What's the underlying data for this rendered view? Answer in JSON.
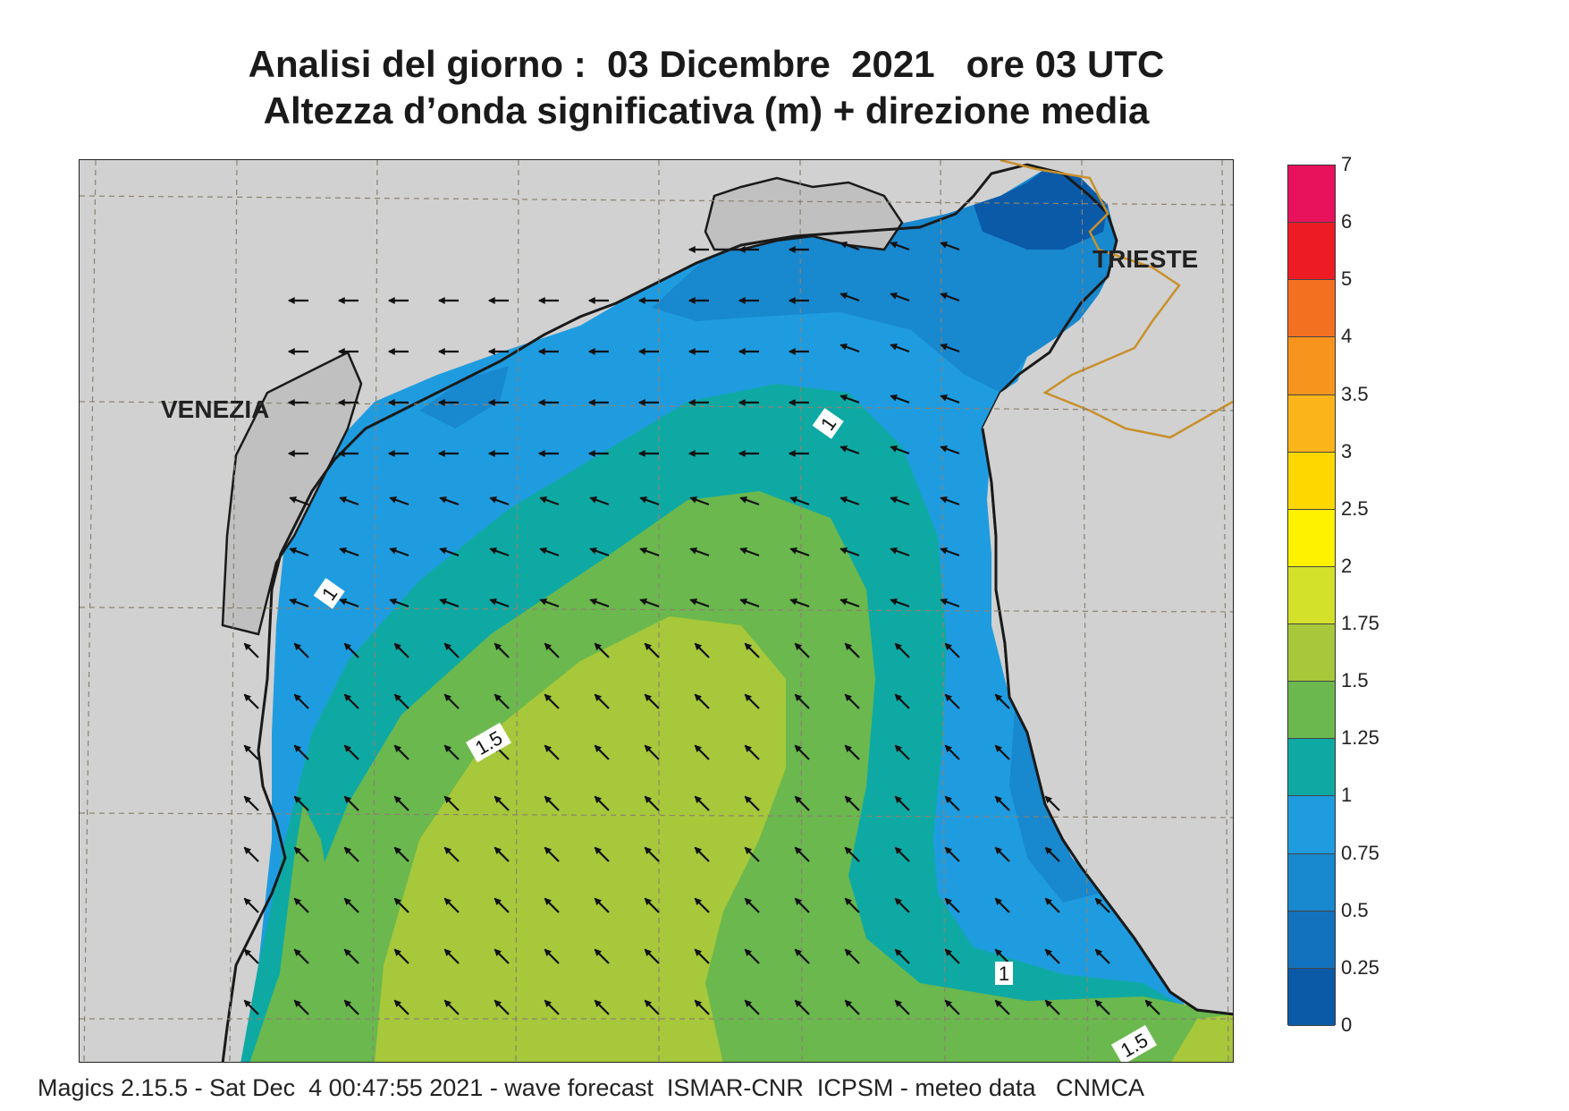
{
  "title": {
    "line1": "Analisi del giorno :  03 Dicembre  2021   ore 03 UTC",
    "line2": "Altezza d’onda significativa (m) + direzione media"
  },
  "cities": {
    "venezia": "VENEZIA",
    "trieste": "TRIESTE"
  },
  "contour_labels": [
    "1",
    "1",
    "1",
    "1.5",
    "1.5"
  ],
  "colorbar": {
    "unit": "m",
    "levels": [
      "0",
      "0.25",
      "0.5",
      "0.75",
      "1",
      "1.25",
      "1.5",
      "1.75",
      "2",
      "2.5",
      "3",
      "3.5",
      "4",
      "5",
      "6",
      "7"
    ],
    "colors": [
      "#0a5aa8",
      "#1372bd",
      "#1888cf",
      "#1f9ce0",
      "#0fa9a4",
      "#6ab84e",
      "#a6c83a",
      "#d3e12a",
      "#fff200",
      "#ffd700",
      "#fbb51a",
      "#f7941d",
      "#f37021",
      "#ed1c24",
      "#e8125c"
    ]
  },
  "map_colors": {
    "land": "#d1d1d1",
    "coast": "#1a1a1a",
    "border": "#c8902c",
    "grid": "#8c8270"
  },
  "footer": "Magics 2.15.5 - Sat Dec  4 00:47:55 2021 - wave forecast  ISMAR-CNR  ICPSM - meteo data   CNMCA"
}
